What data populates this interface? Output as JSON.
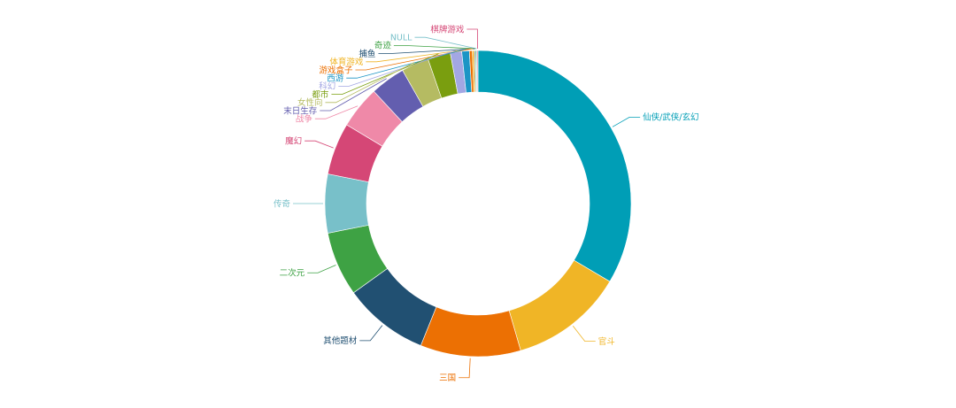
{
  "chart_data": {
    "type": "pie",
    "variant": "donut",
    "label_position": "outside",
    "slices": [
      {
        "label": "仙侠/武侠/玄幻",
        "value": 33.5,
        "color": "#009eb6"
      },
      {
        "label": "官斗",
        "value": 12.0,
        "color": "#f0b526"
      },
      {
        "label": "三国",
        "value": 10.6,
        "color": "#ec7003"
      },
      {
        "label": "其他题材",
        "value": 9.0,
        "color": "#215072"
      },
      {
        "label": "二次元",
        "value": 6.8,
        "color": "#3ea244"
      },
      {
        "label": "传奇",
        "value": 6.2,
        "color": "#78c0c9"
      },
      {
        "label": "魔幻",
        "value": 5.5,
        "color": "#d54776"
      },
      {
        "label": "战争",
        "value": 4.5,
        "color": "#ef89a8"
      },
      {
        "label": "末日生存",
        "value": 3.7,
        "color": "#635eaf"
      },
      {
        "label": "女性向",
        "value": 2.9,
        "color": "#b5bb62"
      },
      {
        "label": "都市",
        "value": 2.4,
        "color": "#7a9e0f"
      },
      {
        "label": "科幻",
        "value": 1.2,
        "color": "#a3a7e3"
      },
      {
        "label": "西游",
        "value": 0.8,
        "color": "#1b95c5"
      },
      {
        "label": "游戏盒子",
        "value": 0.3,
        "color": "#ec7003"
      },
      {
        "label": "体育游戏",
        "value": 0.2,
        "color": "#f0b526"
      },
      {
        "label": "捕鱼",
        "value": 0.1,
        "color": "#215072"
      },
      {
        "label": "奇迹",
        "value": 0.1,
        "color": "#3ea244"
      },
      {
        "label": "NULL",
        "value": 0.1,
        "color": "#78c0c9"
      },
      {
        "label": "棋牌游戏",
        "value": 0.1,
        "color": "#d54776"
      }
    ]
  }
}
